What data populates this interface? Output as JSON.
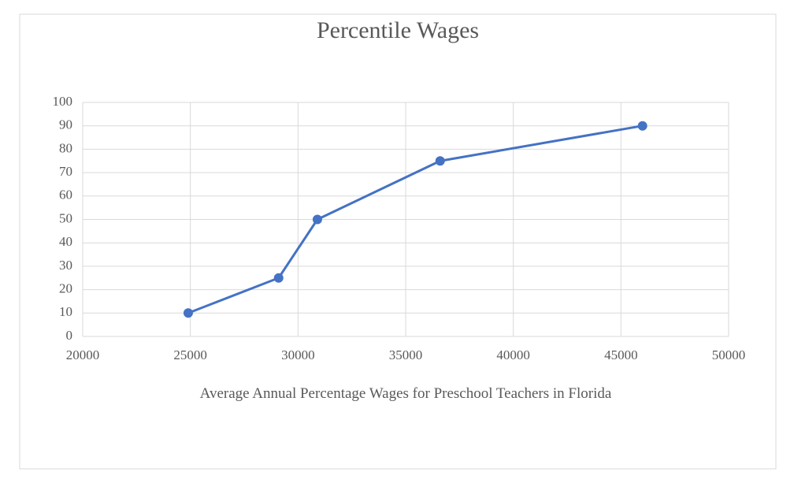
{
  "chart_data": {
    "type": "line",
    "title": "Percentile Wages",
    "x_label": "Average Annual Percentage Wages for Preschool Teachers in Florida",
    "x": [
      24900,
      29100,
      30900,
      36600,
      46000
    ],
    "series": [
      {
        "name": "Percentile",
        "color": "#4472c4",
        "values": [
          10,
          25,
          50,
          75,
          90
        ]
      }
    ],
    "xlim": [
      20000,
      50000
    ],
    "xticks": [
      20000,
      25000,
      30000,
      35000,
      40000,
      45000,
      50000
    ],
    "ylim": [
      0,
      100
    ],
    "yticks": [
      0,
      10,
      20,
      30,
      40,
      50,
      60,
      70,
      80,
      90,
      100
    ],
    "grid": true
  }
}
